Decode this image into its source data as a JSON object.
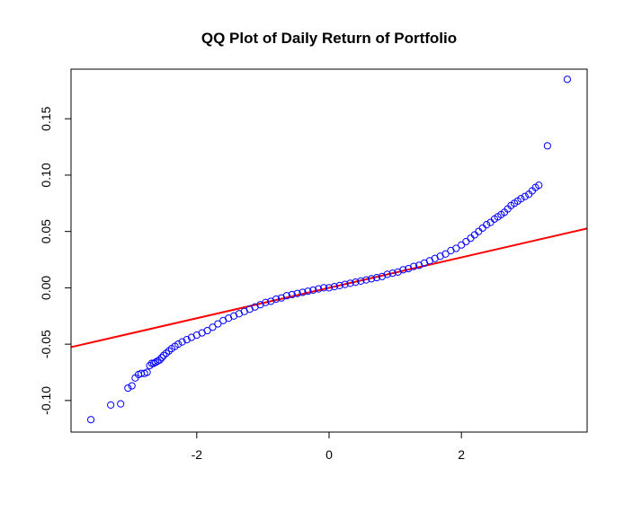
{
  "chart_data": {
    "type": "scatter",
    "title": "QQ Plot of Daily Return of Portfolio",
    "xlabel": "",
    "ylabel": "",
    "xlim": [
      -3.9,
      3.9
    ],
    "ylim": [
      -0.128,
      0.194
    ],
    "x_ticks": [
      -2,
      0,
      2
    ],
    "x_tick_labels": [
      "-2",
      "0",
      "2"
    ],
    "y_ticks": [
      -0.1,
      -0.05,
      0.0,
      0.05,
      0.1,
      0.15
    ],
    "y_tick_labels": [
      "-0.10",
      "-0.05",
      "0.00",
      "0.05",
      "0.10",
      "0.15"
    ],
    "grid": false,
    "point_color": "#0000ff",
    "line_color": "#ff0000",
    "qq_line": {
      "intercept": 0.0,
      "slope": 0.0135
    },
    "points": [
      [
        -3.6,
        -0.117
      ],
      [
        -3.3,
        -0.104
      ],
      [
        -3.15,
        -0.103
      ],
      [
        -3.04,
        -0.089
      ],
      [
        -2.98,
        -0.087
      ],
      [
        -2.93,
        -0.08
      ],
      [
        -2.88,
        -0.077
      ],
      [
        -2.84,
        -0.076
      ],
      [
        -2.79,
        -0.076
      ],
      [
        -2.75,
        -0.075
      ],
      [
        -2.71,
        -0.069
      ],
      [
        -2.68,
        -0.067
      ],
      [
        -2.65,
        -0.067
      ],
      [
        -2.62,
        -0.066
      ],
      [
        -2.59,
        -0.065
      ],
      [
        -2.56,
        -0.064
      ],
      [
        -2.53,
        -0.062
      ],
      [
        -2.5,
        -0.06
      ],
      [
        -2.46,
        -0.058
      ],
      [
        -2.42,
        -0.056
      ],
      [
        -2.38,
        -0.054
      ],
      [
        -2.33,
        -0.052
      ],
      [
        -2.28,
        -0.05
      ],
      [
        -2.22,
        -0.048
      ],
      [
        -2.15,
        -0.046
      ],
      [
        -2.08,
        -0.044
      ],
      [
        -2.0,
        -0.042
      ],
      [
        -1.92,
        -0.04
      ],
      [
        -1.84,
        -0.038
      ],
      [
        -1.76,
        -0.035
      ],
      [
        -1.68,
        -0.032
      ],
      [
        -1.6,
        -0.029
      ],
      [
        -1.52,
        -0.027
      ],
      [
        -1.44,
        -0.025
      ],
      [
        -1.36,
        -0.023
      ],
      [
        -1.28,
        -0.021
      ],
      [
        -1.2,
        -0.019
      ],
      [
        -1.12,
        -0.017
      ],
      [
        -1.04,
        -0.015
      ],
      [
        -0.96,
        -0.013
      ],
      [
        -0.88,
        -0.012
      ],
      [
        -0.8,
        -0.01
      ],
      [
        -0.72,
        -0.009
      ],
      [
        -0.64,
        -0.007
      ],
      [
        -0.56,
        -0.006
      ],
      [
        -0.48,
        -0.005
      ],
      [
        -0.4,
        -0.004
      ],
      [
        -0.32,
        -0.003
      ],
      [
        -0.24,
        -0.002
      ],
      [
        -0.16,
        -0.001
      ],
      [
        -0.08,
        0.0
      ],
      [
        0.0,
        0.0
      ],
      [
        0.08,
        0.001
      ],
      [
        0.16,
        0.002
      ],
      [
        0.24,
        0.003
      ],
      [
        0.32,
        0.004
      ],
      [
        0.4,
        0.005
      ],
      [
        0.48,
        0.006
      ],
      [
        0.56,
        0.007
      ],
      [
        0.64,
        0.008
      ],
      [
        0.72,
        0.009
      ],
      [
        0.8,
        0.01
      ],
      [
        0.88,
        0.012
      ],
      [
        0.96,
        0.013
      ],
      [
        1.04,
        0.014
      ],
      [
        1.12,
        0.016
      ],
      [
        1.2,
        0.017
      ],
      [
        1.28,
        0.019
      ],
      [
        1.36,
        0.02
      ],
      [
        1.44,
        0.022
      ],
      [
        1.52,
        0.024
      ],
      [
        1.6,
        0.026
      ],
      [
        1.68,
        0.028
      ],
      [
        1.76,
        0.03
      ],
      [
        1.84,
        0.033
      ],
      [
        1.92,
        0.035
      ],
      [
        2.0,
        0.038
      ],
      [
        2.07,
        0.041
      ],
      [
        2.14,
        0.044
      ],
      [
        2.2,
        0.047
      ],
      [
        2.26,
        0.05
      ],
      [
        2.32,
        0.053
      ],
      [
        2.38,
        0.056
      ],
      [
        2.44,
        0.058
      ],
      [
        2.5,
        0.061
      ],
      [
        2.55,
        0.063
      ],
      [
        2.6,
        0.065
      ],
      [
        2.65,
        0.067
      ],
      [
        2.7,
        0.07
      ],
      [
        2.75,
        0.073
      ],
      [
        2.8,
        0.075
      ],
      [
        2.85,
        0.077
      ],
      [
        2.9,
        0.079
      ],
      [
        2.96,
        0.081
      ],
      [
        3.02,
        0.083
      ],
      [
        3.07,
        0.086
      ],
      [
        3.12,
        0.089
      ],
      [
        3.17,
        0.091
      ],
      [
        3.3,
        0.126
      ],
      [
        3.6,
        0.185
      ]
    ]
  }
}
